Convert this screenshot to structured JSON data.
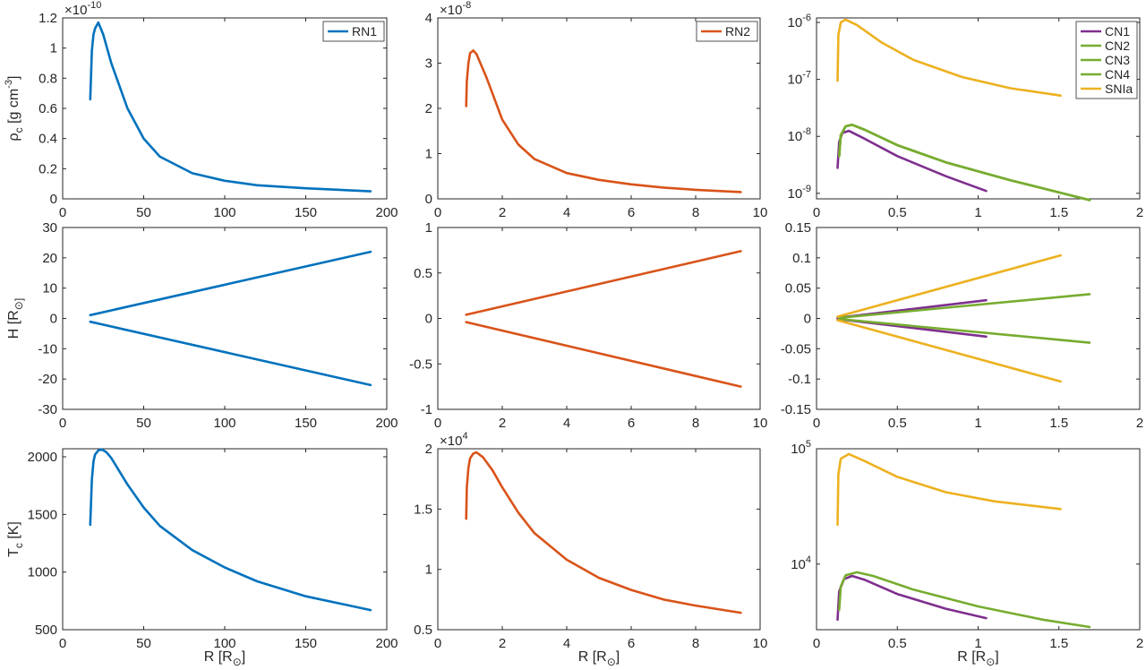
{
  "chart_data": [
    {
      "id": "rho_RN1",
      "type": "line",
      "ylabel": "ρ_c [g cm^-3]",
      "xlabel": "",
      "yscale": "linear",
      "xlim": [
        0,
        200
      ],
      "ylim": [
        0,
        1.2
      ],
      "y_multiplier": "×10^-10",
      "xticks": [
        "0",
        "50",
        "100",
        "150",
        "200"
      ],
      "yticks": [
        "0",
        "0.2",
        "0.4",
        "0.6",
        "0.8",
        "1",
        "1.2"
      ],
      "legend": [
        "RN1"
      ],
      "series": [
        {
          "name": "RN1",
          "color": "#0072BD",
          "x": [
            17,
            18,
            19,
            20,
            22,
            25,
            30,
            40,
            50,
            60,
            80,
            100,
            120,
            150,
            190
          ],
          "y": [
            0.66,
            0.98,
            1.09,
            1.13,
            1.17,
            1.09,
            0.9,
            0.6,
            0.4,
            0.28,
            0.17,
            0.12,
            0.09,
            0.07,
            0.05
          ]
        }
      ]
    },
    {
      "id": "rho_RN2",
      "type": "line",
      "ylabel": "",
      "xlabel": "",
      "yscale": "linear",
      "xlim": [
        0,
        10
      ],
      "ylim": [
        0,
        4
      ],
      "y_multiplier": "×10^-8",
      "xticks": [
        "0",
        "2",
        "4",
        "6",
        "8",
        "10"
      ],
      "yticks": [
        "0",
        "1",
        "2",
        "3",
        "4"
      ],
      "legend": [
        "RN2"
      ],
      "series": [
        {
          "name": "RN2",
          "color": "#D95319",
          "x": [
            0.88,
            0.9,
            0.95,
            1.0,
            1.1,
            1.2,
            1.5,
            2.0,
            2.5,
            3.0,
            4.0,
            5.0,
            6.0,
            7.0,
            8.0,
            9.4
          ],
          "y": [
            2.05,
            2.6,
            3.0,
            3.22,
            3.28,
            3.2,
            2.7,
            1.75,
            1.2,
            0.88,
            0.57,
            0.42,
            0.32,
            0.25,
            0.2,
            0.15
          ]
        }
      ]
    },
    {
      "id": "rho_CN",
      "type": "line",
      "ylabel": "",
      "xlabel": "",
      "yscale": "log",
      "xlim": [
        0,
        2
      ],
      "ylim": [
        8e-10,
        1.2e-06
      ],
      "xticks": [
        "0",
        "0.5",
        "1",
        "1.5",
        "2"
      ],
      "yticks": [
        {
          "base": "10",
          "exp": "-9"
        },
        {
          "base": "10",
          "exp": "-8"
        },
        {
          "base": "10",
          "exp": "-7"
        },
        {
          "base": "10",
          "exp": "-6"
        }
      ],
      "legend": [
        "CN1",
        "CN2",
        "CN3",
        "CN4",
        "SNIa"
      ],
      "series": [
        {
          "name": "CN1",
          "color": "#7E2F8E",
          "x": [
            0.13,
            0.14,
            0.16,
            0.2,
            0.3,
            0.5,
            0.8,
            1.05
          ],
          "y": [
            2.8e-09,
            8e-09,
            1.15e-08,
            1.25e-08,
            9e-09,
            4.5e-09,
            2e-09,
            1.1e-09
          ]
        },
        {
          "name": "CN2",
          "color": "#77AC30",
          "x": [
            0.14,
            0.15,
            0.18,
            0.22,
            0.3,
            0.5,
            0.8,
            1.2,
            1.69
          ],
          "y": [
            4.5e-09,
            1.05e-08,
            1.5e-08,
            1.6e-08,
            1.3e-08,
            7e-09,
            3.5e-09,
            1.7e-09,
            7.6e-10
          ]
        },
        {
          "name": "CN3",
          "color": "#77AC30",
          "x": [
            0.14,
            0.15,
            0.18,
            0.22,
            0.3,
            0.5,
            0.8,
            1.2,
            1.69
          ],
          "y": [
            4.5e-09,
            1.05e-08,
            1.5e-08,
            1.6e-08,
            1.3e-08,
            7e-09,
            3.5e-09,
            1.7e-09,
            7.6e-10
          ]
        },
        {
          "name": "CN4",
          "color": "#77AC30",
          "x": [
            0.14,
            0.15,
            0.18,
            0.22,
            0.3,
            0.5,
            0.8,
            1.2,
            1.69
          ],
          "y": [
            4.5e-09,
            1.05e-08,
            1.5e-08,
            1.6e-08,
            1.3e-08,
            7e-09,
            3.5e-09,
            1.7e-09,
            7.6e-10
          ]
        },
        {
          "name": "SNIa",
          "color": "#EDB120",
          "x": [
            0.13,
            0.135,
            0.15,
            0.18,
            0.25,
            0.4,
            0.6,
            0.9,
            1.2,
            1.51
          ],
          "y": [
            9.5e-08,
            6e-07,
            1e-06,
            1.12e-06,
            9e-07,
            4.5e-07,
            2.2e-07,
            1.1e-07,
            7e-08,
            5.2e-08
          ]
        }
      ]
    },
    {
      "id": "H_RN1",
      "type": "line",
      "ylabel": "H [R_⊙]",
      "xlabel": "",
      "yscale": "linear",
      "xlim": [
        0,
        200
      ],
      "ylim": [
        -30,
        30
      ],
      "xticks": [
        "0",
        "50",
        "100",
        "150",
        "200"
      ],
      "yticks": [
        "-30",
        "-20",
        "-10",
        "0",
        "10",
        "20",
        "30"
      ],
      "legend": [],
      "series": [
        {
          "name": "RN1 upper",
          "color": "#0072BD",
          "x": [
            17,
            190
          ],
          "y": [
            1.1,
            22
          ]
        },
        {
          "name": "RN1 lower",
          "color": "#0072BD",
          "x": [
            17,
            190
          ],
          "y": [
            -1.1,
            -22
          ]
        }
      ]
    },
    {
      "id": "H_RN2",
      "type": "line",
      "ylabel": "",
      "xlabel": "",
      "yscale": "linear",
      "xlim": [
        0,
        10
      ],
      "ylim": [
        -1,
        1
      ],
      "xticks": [
        "0",
        "2",
        "4",
        "6",
        "8",
        "10"
      ],
      "yticks": [
        "-1",
        "-0.5",
        "0",
        "0.5",
        "1"
      ],
      "legend": [],
      "series": [
        {
          "name": "RN2 upper",
          "color": "#D95319",
          "x": [
            0.88,
            9.4
          ],
          "y": [
            0.04,
            0.74
          ]
        },
        {
          "name": "RN2 lower",
          "color": "#D95319",
          "x": [
            0.88,
            9.4
          ],
          "y": [
            -0.04,
            -0.75
          ]
        }
      ]
    },
    {
      "id": "H_CN",
      "type": "line",
      "ylabel": "",
      "xlabel": "",
      "yscale": "linear",
      "xlim": [
        0,
        2
      ],
      "ylim": [
        -0.15,
        0.15
      ],
      "xticks": [
        "0",
        "0.5",
        "1",
        "1.5",
        "2"
      ],
      "yticks": [
        "-0.15",
        "-0.1",
        "-0.05",
        "0",
        "0.05",
        "0.1",
        "0.15"
      ],
      "legend": [],
      "series": [
        {
          "name": "CN1 upper",
          "color": "#7E2F8E",
          "x": [
            0.13,
            1.05
          ],
          "y": [
            0.001,
            0.03
          ]
        },
        {
          "name": "CN1 lower",
          "color": "#7E2F8E",
          "x": [
            0.13,
            1.05
          ],
          "y": [
            -0.001,
            -0.03
          ]
        },
        {
          "name": "CN2 upper",
          "color": "#77AC30",
          "x": [
            0.14,
            1.69
          ],
          "y": [
            0.001,
            0.04
          ]
        },
        {
          "name": "CN2 lower",
          "color": "#77AC30",
          "x": [
            0.14,
            1.69
          ],
          "y": [
            -0.001,
            -0.04
          ]
        },
        {
          "name": "SNIa upper",
          "color": "#EDB120",
          "x": [
            0.13,
            1.51
          ],
          "y": [
            0.003,
            0.104
          ]
        },
        {
          "name": "SNIa lower",
          "color": "#EDB120",
          "x": [
            0.13,
            1.51
          ],
          "y": [
            -0.003,
            -0.104
          ]
        }
      ]
    },
    {
      "id": "T_RN1",
      "type": "line",
      "ylabel": "T_c [K]",
      "xlabel": "R [R_⊙]",
      "yscale": "linear",
      "xlim": [
        0,
        200
      ],
      "ylim": [
        500,
        2070
      ],
      "xticks": [
        "0",
        "50",
        "100",
        "150",
        "200"
      ],
      "yticks": [
        "500",
        "1000",
        "1500",
        "2000"
      ],
      "legend": [],
      "series": [
        {
          "name": "RN1",
          "color": "#0072BD",
          "x": [
            17,
            18,
            19,
            20,
            22,
            24,
            27,
            30,
            40,
            50,
            60,
            80,
            100,
            120,
            150,
            190
          ],
          "y": [
            1410,
            1800,
            1960,
            2020,
            2055,
            2065,
            2040,
            1990,
            1760,
            1560,
            1400,
            1190,
            1040,
            920,
            790,
            670
          ]
        }
      ]
    },
    {
      "id": "T_RN2",
      "type": "line",
      "ylabel": "",
      "xlabel": "R [R_⊙]",
      "yscale": "linear",
      "xlim": [
        0,
        10
      ],
      "ylim": [
        0.5,
        2
      ],
      "y_multiplier": "×10^4",
      "xticks": [
        "0",
        "2",
        "4",
        "6",
        "8",
        "10"
      ],
      "yticks": [
        "0.5",
        "1",
        "1.5",
        "2"
      ],
      "legend": [],
      "series": [
        {
          "name": "RN2",
          "color": "#D95319",
          "x": [
            0.88,
            0.9,
            0.95,
            1.0,
            1.1,
            1.2,
            1.4,
            1.7,
            2.0,
            2.5,
            3.0,
            4.0,
            5.0,
            6.0,
            7.0,
            8.0,
            9.4
          ],
          "y": [
            1.42,
            1.68,
            1.84,
            1.92,
            1.96,
            1.97,
            1.93,
            1.82,
            1.68,
            1.47,
            1.3,
            1.08,
            0.93,
            0.83,
            0.75,
            0.7,
            0.64
          ]
        }
      ]
    },
    {
      "id": "T_CN",
      "type": "line",
      "ylabel": "",
      "xlabel": "R [R_⊙]",
      "yscale": "log",
      "xlim": [
        0,
        2
      ],
      "ylim": [
        2700,
        100000
      ],
      "xticks": [
        "0",
        "0.5",
        "1",
        "1.5",
        "2"
      ],
      "yticks": [
        {
          "base": "10",
          "exp": "4"
        },
        {
          "base": "10",
          "exp": "5"
        }
      ],
      "legend": [],
      "series": [
        {
          "name": "CN1",
          "color": "#7E2F8E",
          "x": [
            0.13,
            0.14,
            0.17,
            0.22,
            0.3,
            0.5,
            0.8,
            1.05
          ],
          "y": [
            3300,
            5800,
            7400,
            7900,
            7300,
            5500,
            4100,
            3400
          ]
        },
        {
          "name": "CN2",
          "color": "#77AC30",
          "x": [
            0.14,
            0.15,
            0.18,
            0.25,
            0.35,
            0.6,
            1.0,
            1.4,
            1.69
          ],
          "y": [
            4000,
            6400,
            8000,
            8500,
            7900,
            6000,
            4300,
            3300,
            2850
          ]
        },
        {
          "name": "SNIa",
          "color": "#EDB120",
          "x": [
            0.13,
            0.135,
            0.15,
            0.2,
            0.3,
            0.5,
            0.8,
            1.1,
            1.51
          ],
          "y": [
            22000,
            60000,
            82000,
            90000,
            78000,
            57000,
            42000,
            35000,
            30000
          ]
        }
      ]
    }
  ]
}
